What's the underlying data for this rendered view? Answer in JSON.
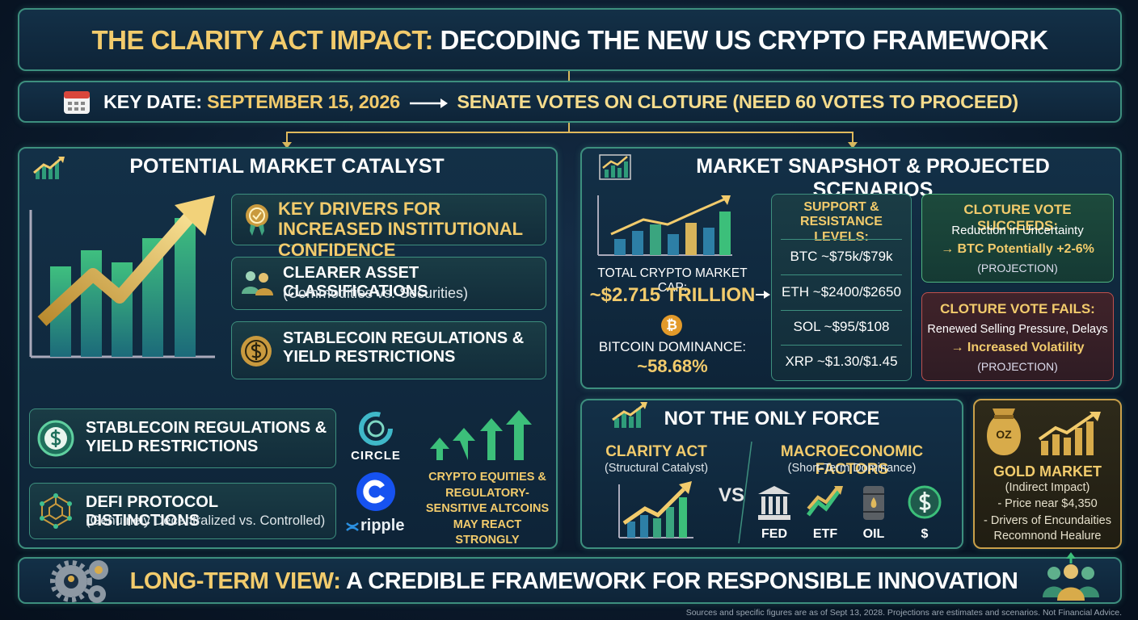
{
  "header": {
    "title_highlight": "THE CLARITY ACT IMPACT:",
    "title_rest": "DECODING THE NEW US CRYPTO FRAMEWORK"
  },
  "key_date": {
    "label": "KEY DATE:",
    "date": "SEPTEMBER 15, 2026",
    "event": "SENATE VOTES ON CLOTURE (NEED 60 VOTES TO PROCEED)"
  },
  "catalyst": {
    "title": "POTENTIAL MARKET CATALYST",
    "drivers": [
      {
        "title": "KEY DRIVERS FOR INCREASED INSTITUTIONAL CONFIDENCE"
      },
      {
        "title": "CLEARER ASSET CLASSIFICATIONS",
        "subtitle": "(Commodities vs. Securities)"
      },
      {
        "title": "STABLECOIN REGULATIONS & YIELD RESTRICTIONS"
      }
    ],
    "lower": [
      {
        "title": "STABLECOIN REGULATIONS & YIELD RESTRICTIONS"
      },
      {
        "title": "DEFI PROTOCOL DISTINCTIONS",
        "subtitle": "(Genuinely Decentralized vs. Controlled)"
      }
    ],
    "logos": [
      "CIRCLE",
      "ripple"
    ],
    "equities_note": "CRYPTO EQUITIES & REGULATORY-SENSITIVE ALTCOINS MAY REACT STRONGLY"
  },
  "snapshot": {
    "title": "MARKET SNAPSHOT & PROJECTED SCENARIOS",
    "market_cap_label": "TOTAL CRYPTO MARKET CAP:",
    "market_cap": "~$2.715 TRILLION",
    "bitcoin_symbol": "₿",
    "dominance_label": "BITCOIN DOMINANCE:",
    "dominance": "~58.68%",
    "levels_title": "SUPPORT & RESISTANCE LEVELS:",
    "levels": [
      {
        "asset": "BTC",
        "range": "~$75k/$79k"
      },
      {
        "asset": "ETH",
        "range": "~$2400/$2650"
      },
      {
        "asset": "SOL",
        "range": "~$95/$108"
      },
      {
        "asset": "XRP",
        "range": "~$1.30/$1.45"
      }
    ],
    "scenarios": [
      {
        "title": "CLOTURE VOTE SUCCEEDS:",
        "line": "Reduction in Uncertainty",
        "outcome": "→ BTC Potentially +2-6%",
        "tag": "(PROJECTION)"
      },
      {
        "title": "CLOTURE VOTE FAILS:",
        "line": "Renewed Selling Pressure, Delays",
        "outcome": "→ Increased Volatility",
        "tag": "(PROJECTION)"
      }
    ]
  },
  "force": {
    "title": "NOT THE ONLY FORCE",
    "left_title": "CLARITY ACT",
    "left_subtitle": "(Structural Catalyst)",
    "vs": "VS",
    "right_title": "MACROECONOMIC FACTORS",
    "right_subtitle": "(Short-Term Dominance)",
    "factors": [
      "FED",
      "ETF",
      "OIL",
      "$"
    ]
  },
  "gold": {
    "bag_label": "OZ",
    "title": "GOLD MARKET",
    "subtitle": "(Indirect Impact)",
    "bullets": [
      "- Price near $4,350",
      "- Drivers of Encundaities Recomnond Healure"
    ]
  },
  "footer": {
    "highlight": "LONG-TERM VIEW:",
    "rest": "A CREDIBLE FRAMEWORK FOR RESPONSIBLE INNOVATION"
  },
  "footnote": "Sources and specific figures are as of Sept 13, 2028. Projections are estimates and scenarios. Not Financial Advice."
}
